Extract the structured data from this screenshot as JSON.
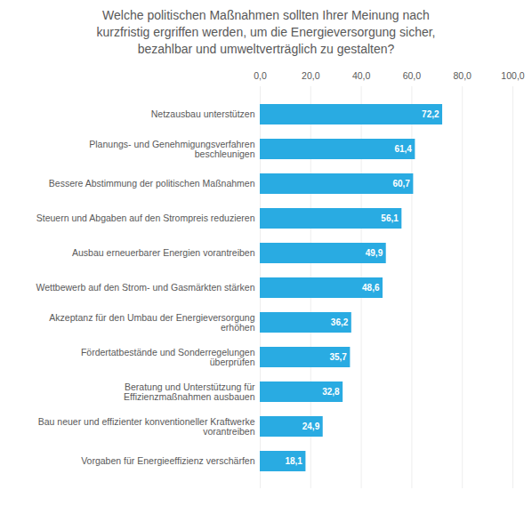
{
  "chart_data": {
    "type": "bar",
    "orientation": "horizontal",
    "title": "Welche politischen Maßnahmen sollten Ihrer Meinung nach\nkurzfristig ergriffen werden, um die Energieversorgung sicher,\nbezahlbar und umweltverträglich zu gestalten?",
    "categories": [
      "Vorgaben für Energieeffizienz verschärfen",
      "Bau neuer und effizienter konventioneller Kraftwerke\nvorantreiben",
      "Beratung und Unterstützung für\nEffizienzmaßnahmen ausbauen",
      "Fördertatbestände und Sonderregelungen\nüberprüfen",
      "Akzeptanz für den Umbau der Energieversorgung\nerhöhen",
      "Wettbewerb auf den Strom- und Gasmärkten stärken",
      "Ausbau erneuerbarer Energien vorantreiben",
      "Steuern und Abgaben auf den Strompreis reduzieren",
      "Bessere Abstimmung der politischen Maßnahmen",
      "Planungs- und Genehmigungsverfahren\nbeschleunigen",
      "Netzausbau unterstützen"
    ],
    "values": [
      18.1,
      24.9,
      32.8,
      35.7,
      36.2,
      48.6,
      49.9,
      56.1,
      60.7,
      61.4,
      72.2
    ],
    "value_labels": [
      "18,1",
      "24,9",
      "32,8",
      "35,7",
      "36,2",
      "48,6",
      "49,9",
      "56,1",
      "60,7",
      "61,4",
      "72,2"
    ],
    "data_labels": true,
    "color": "#29abe2",
    "xlim": [
      0,
      100
    ],
    "xticks": [
      {
        "value": 0,
        "label": "0,0"
      },
      {
        "value": 20,
        "label": "20,0"
      },
      {
        "value": 40,
        "label": "40,0"
      },
      {
        "value": 60,
        "label": "60,0"
      },
      {
        "value": 80,
        "label": "80,0"
      },
      {
        "value": 100,
        "label": "100,0"
      }
    ],
    "grid": true
  }
}
